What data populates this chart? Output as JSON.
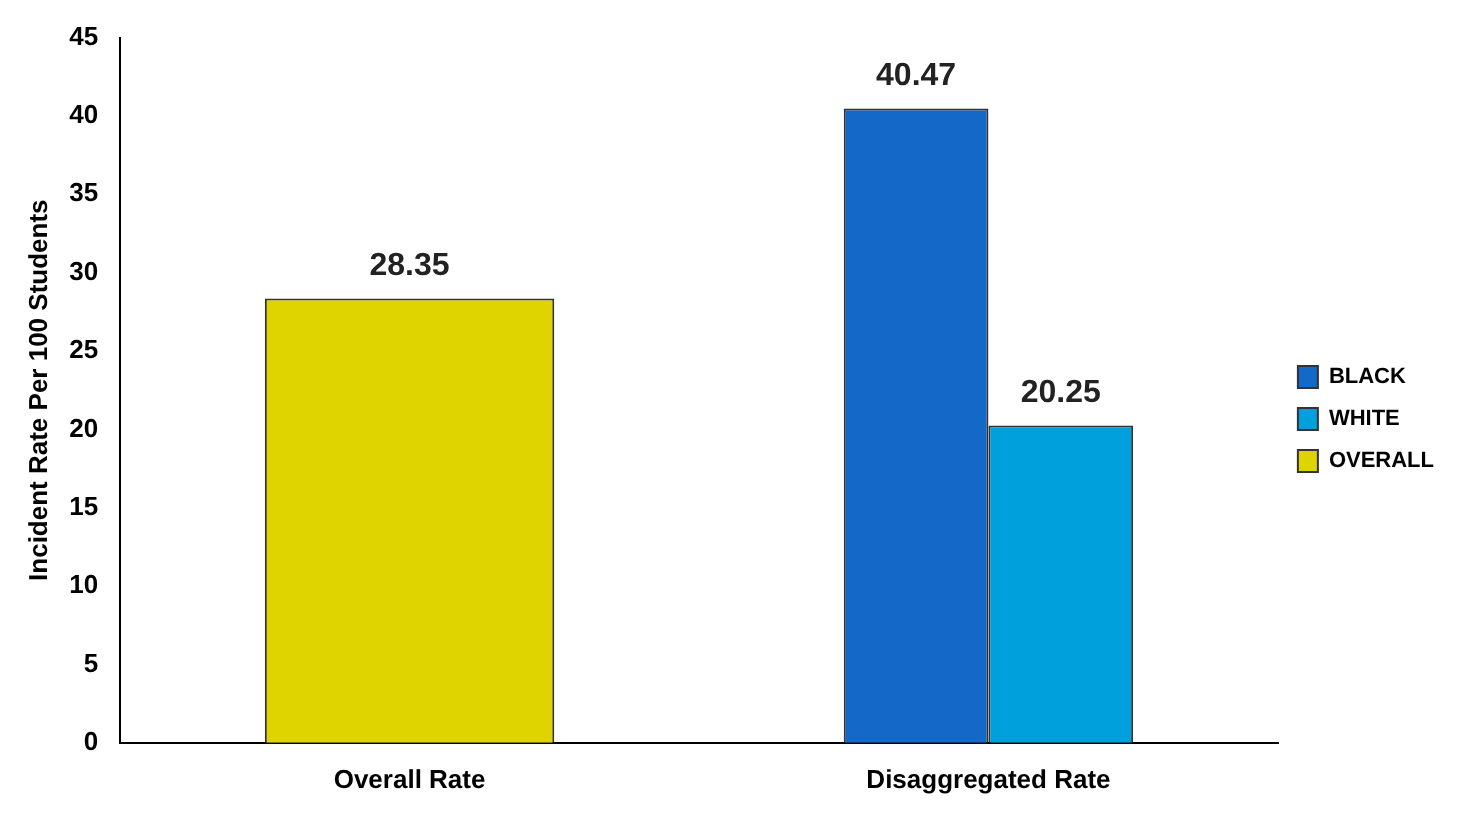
{
  "chart_data": {
    "type": "bar",
    "categories": [
      "Overall Rate",
      "Disaggregated Rate"
    ],
    "series": [
      {
        "name": "BLACK",
        "color": "#1469c8",
        "values": [
          null,
          40.47
        ]
      },
      {
        "name": "WHITE",
        "color": "#00a0dc",
        "values": [
          null,
          20.25
        ]
      },
      {
        "name": "OVERALL",
        "color": "#e0d400",
        "values": [
          28.35,
          null
        ]
      }
    ],
    "ylabel": "Incident Rate Per 100 Students",
    "ylim": [
      0,
      45
    ],
    "yticks": [
      0,
      5,
      10,
      15,
      20,
      25,
      30,
      35,
      40,
      45
    ],
    "grid": false,
    "legend": "right",
    "data_labels": true
  }
}
